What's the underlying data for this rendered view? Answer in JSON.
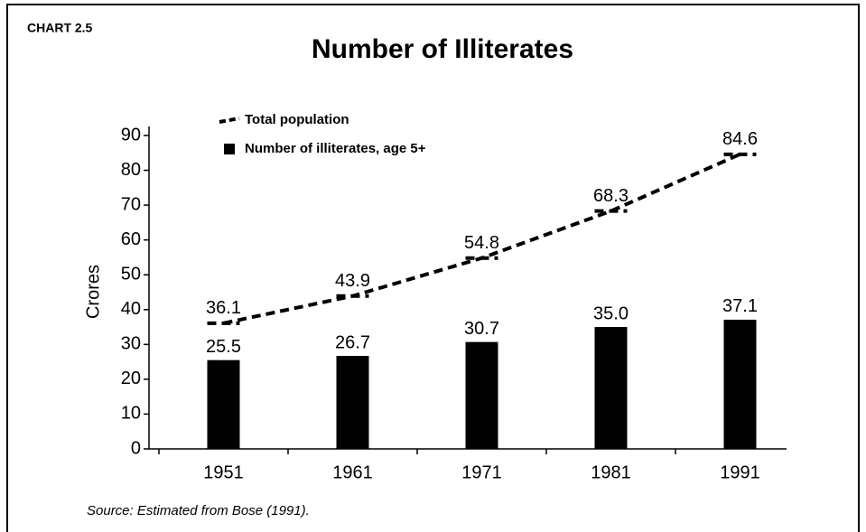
{
  "chart_data": {
    "type": "bar_line",
    "label": "CHART 2.5",
    "title": "Number of Illiterates",
    "ylabel": "Crores",
    "source": "Source: Estimated from Bose (1991).",
    "categories": [
      "1951",
      "1961",
      "1971",
      "1981",
      "1991"
    ],
    "series": [
      {
        "name": "Total population",
        "type": "line",
        "color": "#000000",
        "values": [
          36.1,
          43.9,
          54.8,
          68.3,
          84.6
        ]
      },
      {
        "name": "Number of illiterates, age 5+",
        "type": "bar",
        "color": "#000000",
        "values": [
          25.5,
          26.7,
          30.7,
          35.0,
          37.1
        ],
        "value_labels": [
          "25.5",
          "26.7",
          "30.7",
          "35.0",
          "37.1"
        ]
      }
    ],
    "ylim": [
      0,
      90
    ],
    "yticks": [
      0,
      10,
      20,
      30,
      40,
      50,
      60,
      70,
      80,
      90
    ],
    "legend": "top-left",
    "grid": false
  }
}
